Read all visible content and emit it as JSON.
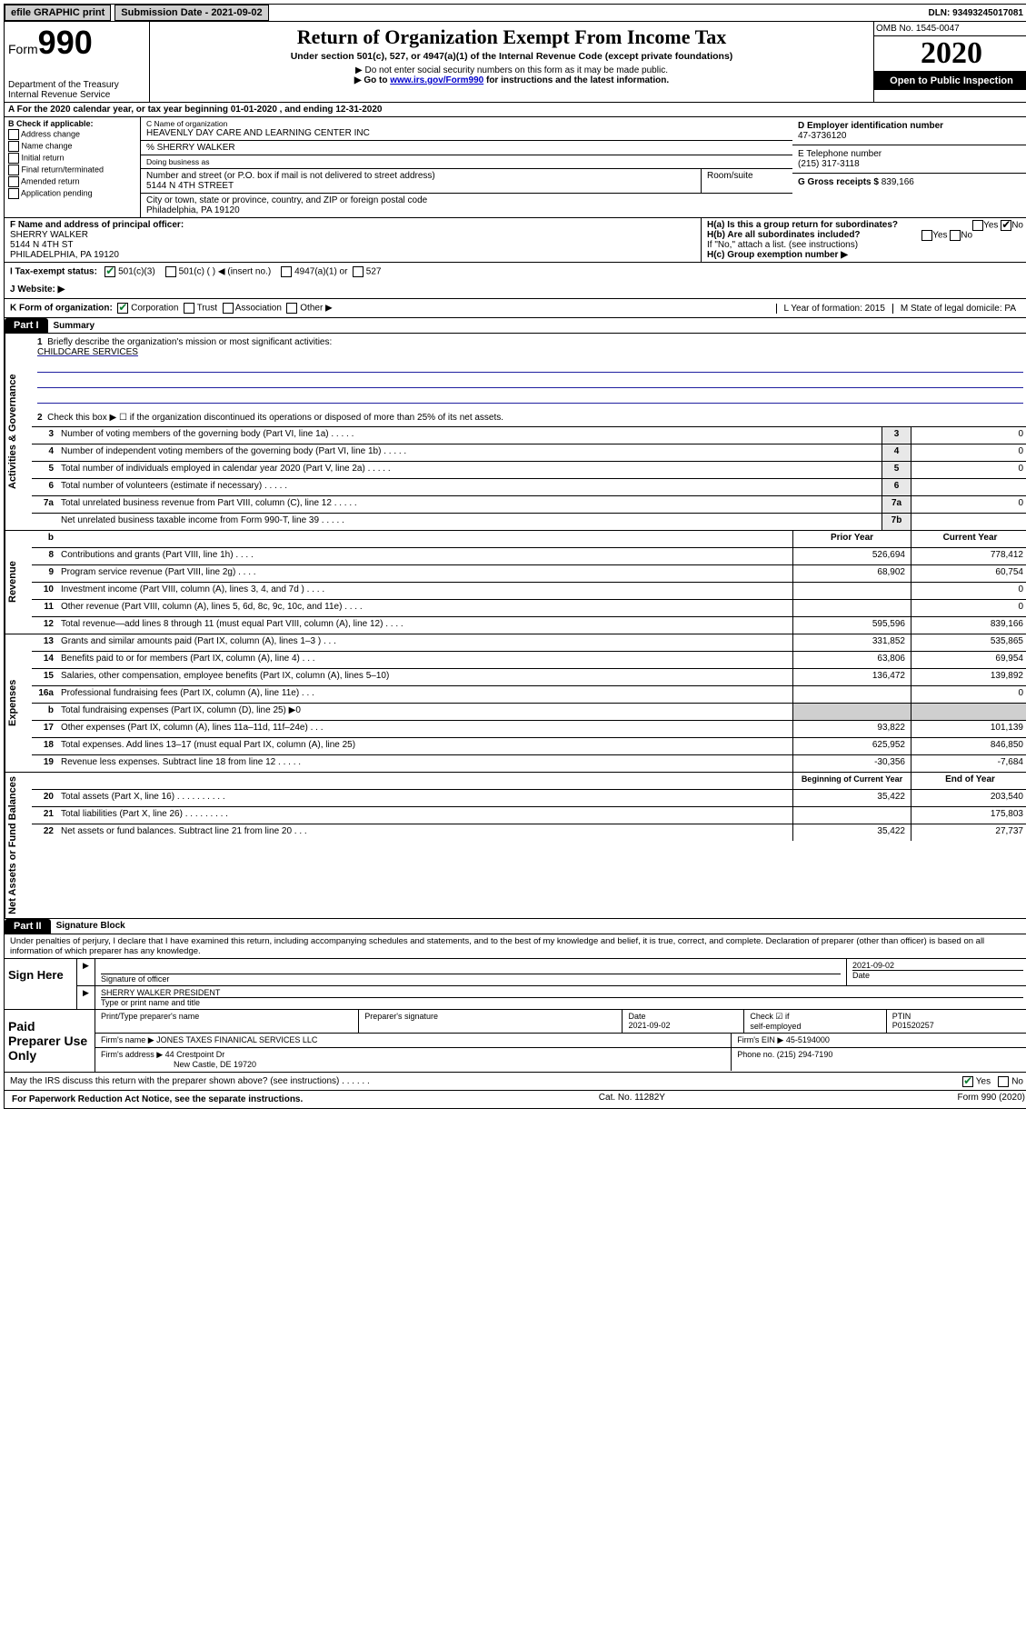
{
  "topbar": {
    "efile": "efile GRAPHIC print",
    "submission_label": "Submission Date - 2021-09-02",
    "dln_label": "DLN: 93493245017081"
  },
  "header": {
    "form_word": "Form",
    "form_num": "990",
    "dept": "Department of the Treasury\nInternal Revenue Service",
    "title": "Return of Organization Exempt From Income Tax",
    "subtitle": "Under section 501(c), 527, or 4947(a)(1) of the Internal Revenue Code (except private foundations)",
    "note1": "▶ Do not enter social security numbers on this form as it may be made public.",
    "note2_pre": "▶ Go to ",
    "note2_link": "www.irs.gov/Form990",
    "note2_post": " for instructions and the latest information.",
    "omb": "OMB No. 1545-0047",
    "year": "2020",
    "open": "Open to Public Inspection"
  },
  "rowA": "A For the 2020 calendar year, or tax year beginning 01-01-2020   , and ending 12-31-2020",
  "boxB": {
    "title": "B Check if applicable:",
    "opts": [
      "Address change",
      "Name change",
      "Initial return",
      "Final return/terminated",
      "Amended return",
      "Application pending"
    ]
  },
  "boxC": {
    "name_lbl": "C Name of organization",
    "name": "HEAVENLY DAY CARE AND LEARNING CENTER INC",
    "pct": "% SHERRY WALKER",
    "dba_lbl": "Doing business as",
    "addr_lbl": "Number and street (or P.O. box if mail is not delivered to street address)",
    "room_lbl": "Room/suite",
    "addr": "5144 N 4TH STREET",
    "city_lbl": "City or town, state or province, country, and ZIP or foreign postal code",
    "city": "Philadelphia, PA  19120"
  },
  "boxD": {
    "lbl": "D Employer identification number",
    "val": "47-3736120"
  },
  "boxE": {
    "lbl": "E Telephone number",
    "val": "(215) 317-3118"
  },
  "boxG": {
    "lbl": "G Gross receipts $",
    "val": "839,166"
  },
  "boxF": {
    "lbl": "F  Name and address of principal officer:",
    "name": "SHERRY WALKER",
    "addr": "5144 N 4TH ST",
    "city": "PHILADELPHIA, PA  19120"
  },
  "boxH": {
    "a": "H(a)  Is this a group return for subordinates?",
    "b": "H(b)  Are all subordinates included?",
    "b2": "If \"No,\" attach a list. (see instructions)",
    "c": "H(c)  Group exemption number ▶",
    "yes": "Yes",
    "no": "No"
  },
  "rowI": {
    "lbl": "I   Tax-exempt status:",
    "o1": "501(c)(3)",
    "o2": "501(c) (  ) ◀ (insert no.)",
    "o3": "4947(a)(1) or",
    "o4": "527"
  },
  "rowJ": "J   Website: ▶",
  "rowK": {
    "lbl": "K Form of organization:",
    "o1": "Corporation",
    "o2": "Trust",
    "o3": "Association",
    "o4": "Other ▶",
    "L": "L Year of formation: 2015",
    "M": "M State of legal domicile: PA"
  },
  "partI": {
    "tag": "Part I",
    "title": "Summary"
  },
  "summary": {
    "q1": "Briefly describe the organization's mission or most significant activities:",
    "mission": "CHILDCARE SERVICES",
    "q2": "Check this box ▶ ☐  if the organization discontinued its operations or disposed of more than 25% of its net assets.",
    "lines_gov": [
      {
        "n": "3",
        "d": "Number of voting members of the governing body (Part VI, line 1a)",
        "box": "3",
        "v": "0"
      },
      {
        "n": "4",
        "d": "Number of independent voting members of the governing body (Part VI, line 1b)",
        "box": "4",
        "v": "0"
      },
      {
        "n": "5",
        "d": "Total number of individuals employed in calendar year 2020 (Part V, line 2a)",
        "box": "5",
        "v": "0"
      },
      {
        "n": "6",
        "d": "Total number of volunteers (estimate if necessary)",
        "box": "6",
        "v": ""
      },
      {
        "n": "7a",
        "d": "Total unrelated business revenue from Part VIII, column (C), line 12",
        "box": "7a",
        "v": "0"
      },
      {
        "n": "",
        "d": "Net unrelated business taxable income from Form 990-T, line 39",
        "box": "7b",
        "v": ""
      }
    ],
    "col_hdr": {
      "prior": "Prior Year",
      "current": "Current Year"
    },
    "revenue": [
      {
        "n": "8",
        "d": "Contributions and grants (Part VIII, line 1h)",
        "p": "526,694",
        "c": "778,412"
      },
      {
        "n": "9",
        "d": "Program service revenue (Part VIII, line 2g)",
        "p": "68,902",
        "c": "60,754"
      },
      {
        "n": "10",
        "d": "Investment income (Part VIII, column (A), lines 3, 4, and 7d )",
        "p": "",
        "c": "0"
      },
      {
        "n": "11",
        "d": "Other revenue (Part VIII, column (A), lines 5, 6d, 8c, 9c, 10c, and 11e)",
        "p": "",
        "c": "0"
      },
      {
        "n": "12",
        "d": "Total revenue—add lines 8 through 11 (must equal Part VIII, column (A), line 12)",
        "p": "595,596",
        "c": "839,166"
      }
    ],
    "expenses": [
      {
        "n": "13",
        "d": "Grants and similar amounts paid (Part IX, column (A), lines 1–3 )   .   .   .",
        "p": "331,852",
        "c": "535,865"
      },
      {
        "n": "14",
        "d": "Benefits paid to or for members (Part IX, column (A), line 4)   .   .   .",
        "p": "63,806",
        "c": "69,954"
      },
      {
        "n": "15",
        "d": "Salaries, other compensation, employee benefits (Part IX, column (A), lines 5–10)",
        "p": "136,472",
        "c": "139,892"
      },
      {
        "n": "16a",
        "d": "Professional fundraising fees (Part IX, column (A), line 11e)   .   .   .",
        "p": "",
        "c": "0"
      },
      {
        "n": "b",
        "d": "Total fundraising expenses (Part IX, column (D), line 25) ▶0",
        "p": "shade",
        "c": "shade"
      },
      {
        "n": "17",
        "d": "Other expenses (Part IX, column (A), lines 11a–11d, 11f–24e)   .   .   .",
        "p": "93,822",
        "c": "101,139"
      },
      {
        "n": "18",
        "d": "Total expenses. Add lines 13–17 (must equal Part IX, column (A), line 25)",
        "p": "625,952",
        "c": "846,850"
      },
      {
        "n": "19",
        "d": "Revenue less expenses. Subtract line 18 from line 12   .   .   .   .   .",
        "p": "-30,356",
        "c": "-7,684"
      }
    ],
    "net_hdr": {
      "b": "Beginning of Current Year",
      "e": "End of Year"
    },
    "net": [
      {
        "n": "20",
        "d": "Total assets (Part X, line 16)   .   .   .   .   .   .   .   .   .   .",
        "p": "35,422",
        "c": "203,540"
      },
      {
        "n": "21",
        "d": "Total liabilities (Part X, line 26)   .   .   .   .   .   .   .   .   .",
        "p": "",
        "c": "175,803"
      },
      {
        "n": "22",
        "d": "Net assets or fund balances. Subtract line 21 from line 20   .   .   .",
        "p": "35,422",
        "c": "27,737"
      }
    ]
  },
  "vlabels": {
    "gov": "Activities & Governance",
    "rev": "Revenue",
    "exp": "Expenses",
    "net": "Net Assets or Fund Balances"
  },
  "partII": {
    "tag": "Part II",
    "title": "Signature Block"
  },
  "perjury": "Under penalties of perjury, I declare that I have examined this return, including accompanying schedules and statements, and to the best of my knowledge and belief, it is true, correct, and complete. Declaration of preparer (other than officer) is based on all information of which preparer has any knowledge.",
  "sign": {
    "here": "Sign Here",
    "sig_lbl": "Signature of officer",
    "date": "2021-09-02",
    "date_lbl": "Date",
    "name": "SHERRY WALKER  PRESIDENT",
    "name_lbl": "Type or print name and title"
  },
  "paid": {
    "lbl": "Paid Preparer Use Only",
    "h1": "Print/Type preparer's name",
    "h2": "Preparer's signature",
    "h3": "Date",
    "date": "2021-09-02",
    "h4_1": "Check ☑ if",
    "h4_2": "self-employed",
    "h5": "PTIN",
    "ptin": "P01520257",
    "firm_name_lbl": "Firm's name    ▶",
    "firm_name": "JONES TAXES FINANICAL SERVICES LLC",
    "firm_ein_lbl": "Firm's EIN ▶",
    "firm_ein": "45-5194000",
    "firm_addr_lbl": "Firm's address ▶",
    "firm_addr1": "44 Crestpoint Dr",
    "firm_addr2": "New Castle, DE  19720",
    "phone_lbl": "Phone no.",
    "phone": "(215) 294-7190"
  },
  "discuss": {
    "q": "May the IRS discuss this return with the preparer shown above? (see instructions)   .   .   .   .   .   .",
    "yes": "Yes",
    "no": "No"
  },
  "footer": {
    "left": "For Paperwork Reduction Act Notice, see the separate instructions.",
    "mid": "Cat. No. 11282Y",
    "right": "Form 990 (2020)"
  },
  "b_row": "b"
}
